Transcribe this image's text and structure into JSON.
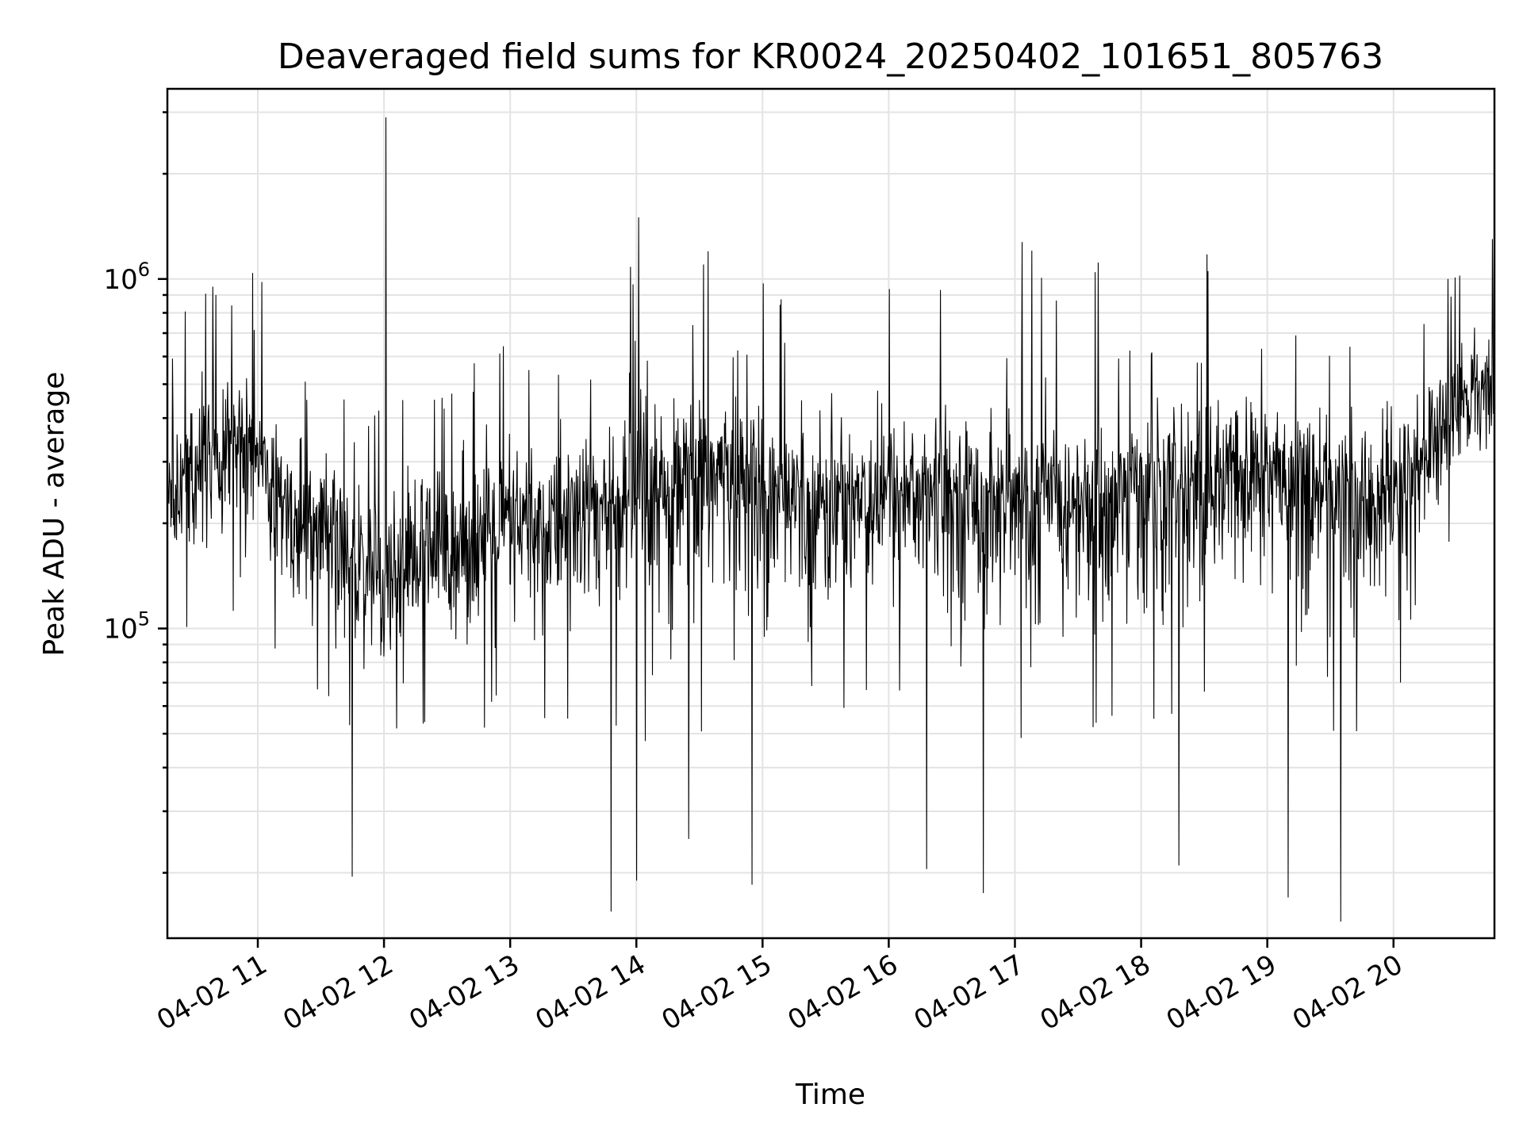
{
  "chart_data": {
    "type": "line",
    "title": "Deaveraged field sums for KR0024_20250402_101651_805763",
    "xlabel": "Time",
    "ylabel": "Peak ADU - average",
    "yscale": "log",
    "ylim": [
      13000,
      3500000
    ],
    "xlim": [
      "04-02 10:17",
      "04-02 20:48"
    ],
    "x_ticks": [
      "04-02 11",
      "04-02 12",
      "04-02 13",
      "04-02 14",
      "04-02 15",
      "04-02 16",
      "04-02 17",
      "04-02 18",
      "04-02 19",
      "04-02 20"
    ],
    "y_ticks": [
      {
        "base": "10",
        "exp": "5",
        "value": 100000
      },
      {
        "base": "10",
        "exp": "6",
        "value": 1000000
      }
    ],
    "grid": true,
    "legend": "none",
    "series_color": "#000000",
    "series": [
      {
        "x": [
          "04-02 10:17",
          "04-02 10:30",
          "04-02 10:45",
          "04-02 11:00",
          "04-02 11:15",
          "04-02 11:30",
          "04-02 11:45",
          "04-02 12:00",
          "04-02 12:15",
          "04-02 12:30",
          "04-02 12:45",
          "04-02 13:00",
          "04-02 13:15",
          "04-02 13:30",
          "04-02 13:45",
          "04-02 14:00",
          "04-02 14:15",
          "04-02 14:30",
          "04-02 14:45",
          "04-02 15:00",
          "04-02 15:15",
          "04-02 15:30",
          "04-02 15:45",
          "04-02 16:00",
          "04-02 16:15",
          "04-02 16:30",
          "04-02 16:45",
          "04-02 17:00",
          "04-02 17:15",
          "04-02 17:30",
          "04-02 17:45",
          "04-02 18:00",
          "04-02 18:15",
          "04-02 18:30",
          "04-02 18:45",
          "04-02 19:00",
          "04-02 19:15",
          "04-02 19:30",
          "04-02 19:45",
          "04-02 20:00",
          "04-02 20:15",
          "04-02 20:30",
          "04-02 20:48"
        ],
        "values": [
          250000,
          280000,
          360000,
          320000,
          200000,
          180000,
          150000,
          140000,
          160000,
          170000,
          180000,
          190000,
          190000,
          210000,
          220000,
          230000,
          220000,
          280000,
          270000,
          250000,
          240000,
          230000,
          250000,
          260000,
          250000,
          240000,
          250000,
          230000,
          240000,
          220000,
          240000,
          260000,
          260000,
          270000,
          280000,
          290000,
          270000,
          250000,
          230000,
          250000,
          300000,
          450000,
          480000
        ],
        "envelope_high": [
          600000,
          700000,
          900000,
          700000,
          650000,
          550000,
          450000,
          450000,
          500000,
          500000,
          550000,
          650000,
          600000,
          650000,
          550000,
          1500000,
          600000,
          1200000,
          650000,
          750000,
          700000,
          650000,
          700000,
          650000,
          700000,
          600000,
          650000,
          600000,
          600000,
          650000,
          600000,
          700000,
          650000,
          650000,
          700000,
          700000,
          700000,
          650000,
          650000,
          650000,
          800000,
          1000000,
          1300000
        ],
        "envelope_low": [
          60000,
          100000,
          100000,
          90000,
          80000,
          60000,
          60000,
          50000,
          50000,
          60000,
          50000,
          55000,
          55000,
          45000,
          50000,
          50000,
          45000,
          40000,
          60000,
          55000,
          70000,
          55000,
          60000,
          60000,
          60000,
          50000,
          50000,
          40000,
          50000,
          55000,
          45000,
          55000,
          50000,
          55000,
          55000,
          55000,
          50000,
          45000,
          45000,
          50000,
          110000,
          190000,
          280000
        ],
        "spikes_high": [
          {
            "x": "04-02 10:40",
            "value": 900000
          },
          {
            "x": "04-02 11:02",
            "value": 980000
          },
          {
            "x": "04-02 12:01",
            "value": 2900000
          },
          {
            "x": "04-02 14:01",
            "value": 1500000
          },
          {
            "x": "04-02 14:32",
            "value": 1100000
          },
          {
            "x": "04-02 14:34",
            "value": 1200000
          },
          {
            "x": "04-02 20:26",
            "value": 1000000
          },
          {
            "x": "04-02 20:47",
            "value": 1300000
          }
        ],
        "spikes_low": [
          {
            "x": "04-02 11:45",
            "value": 19500
          },
          {
            "x": "04-02 13:48",
            "value": 15500
          },
          {
            "x": "04-02 14:00",
            "value": 19000
          },
          {
            "x": "04-02 14:25",
            "value": 25000
          },
          {
            "x": "04-02 14:55",
            "value": 18500
          },
          {
            "x": "04-02 16:18",
            "value": 20500
          },
          {
            "x": "04-02 16:45",
            "value": 17500
          },
          {
            "x": "04-02 18:18",
            "value": 21000
          },
          {
            "x": "04-02 19:10",
            "value": 17000
          },
          {
            "x": "04-02 19:35",
            "value": 14500
          }
        ]
      }
    ]
  }
}
